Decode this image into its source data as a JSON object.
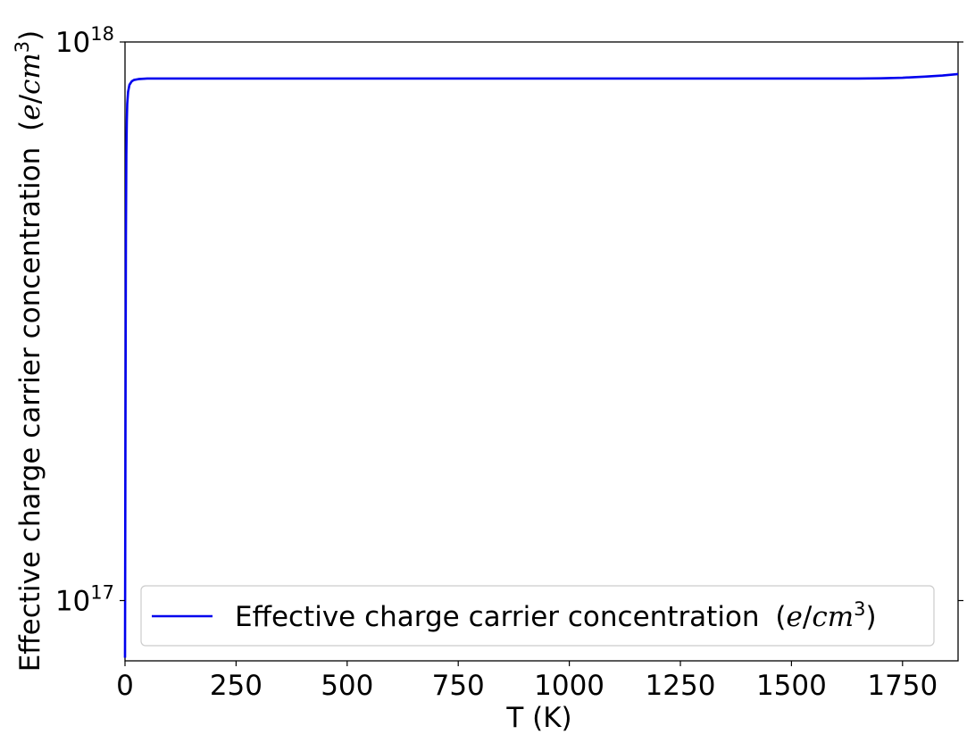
{
  "chart_data": {
    "type": "line",
    "xlabel": "T (K)",
    "ylabel": "Effective charge carrier concentration",
    "yscale": "log",
    "xlim": [
      0,
      1875
    ],
    "ylim": [
      7.8e+16,
      1e+18
    ],
    "x_ticks": [
      0,
      250,
      500,
      750,
      1000,
      1250,
      1500,
      1750
    ],
    "x_tick_labels": [
      "0",
      "250",
      "500",
      "750",
      "1000",
      "1250",
      "1500",
      "1750"
    ],
    "y_ticks": [
      1e+17,
      1e+18
    ],
    "y_tick_labels": [
      {
        "base": "10",
        "exp": "17"
      },
      {
        "base": "10",
        "exp": "18"
      }
    ],
    "grid": false,
    "legend_position": "lower-center",
    "unit_label": {
      "open": "(",
      "e": "e",
      "slash": "/",
      "cm": "cm",
      "exp": "3",
      "close": ")"
    },
    "series": [
      {
        "name": "Effective charge carrier concentration",
        "color": "#0000ee",
        "points": [
          [
            0,
            7.9e+16
          ],
          [
            1,
            2e+17
          ],
          [
            2,
            4.5e+17
          ],
          [
            3,
            6.3e+17
          ],
          [
            4,
            7.2e+17
          ],
          [
            5,
            7.75e+17
          ],
          [
            7,
            8.15e+17
          ],
          [
            10,
            8.38e+17
          ],
          [
            15,
            8.5e+17
          ],
          [
            20,
            8.55e+17
          ],
          [
            30,
            8.58e+17
          ],
          [
            50,
            8.6e+17
          ],
          [
            100,
            8.6e+17
          ],
          [
            250,
            8.6e+17
          ],
          [
            500,
            8.6e+17
          ],
          [
            750,
            8.6e+17
          ],
          [
            1000,
            8.6e+17
          ],
          [
            1250,
            8.6e+17
          ],
          [
            1500,
            8.6e+17
          ],
          [
            1650,
            8.6e+17
          ],
          [
            1700,
            8.61e+17
          ],
          [
            1750,
            8.63e+17
          ],
          [
            1800,
            8.67e+17
          ],
          [
            1840,
            8.71e+17
          ],
          [
            1875,
            8.76e+17
          ]
        ]
      }
    ]
  }
}
